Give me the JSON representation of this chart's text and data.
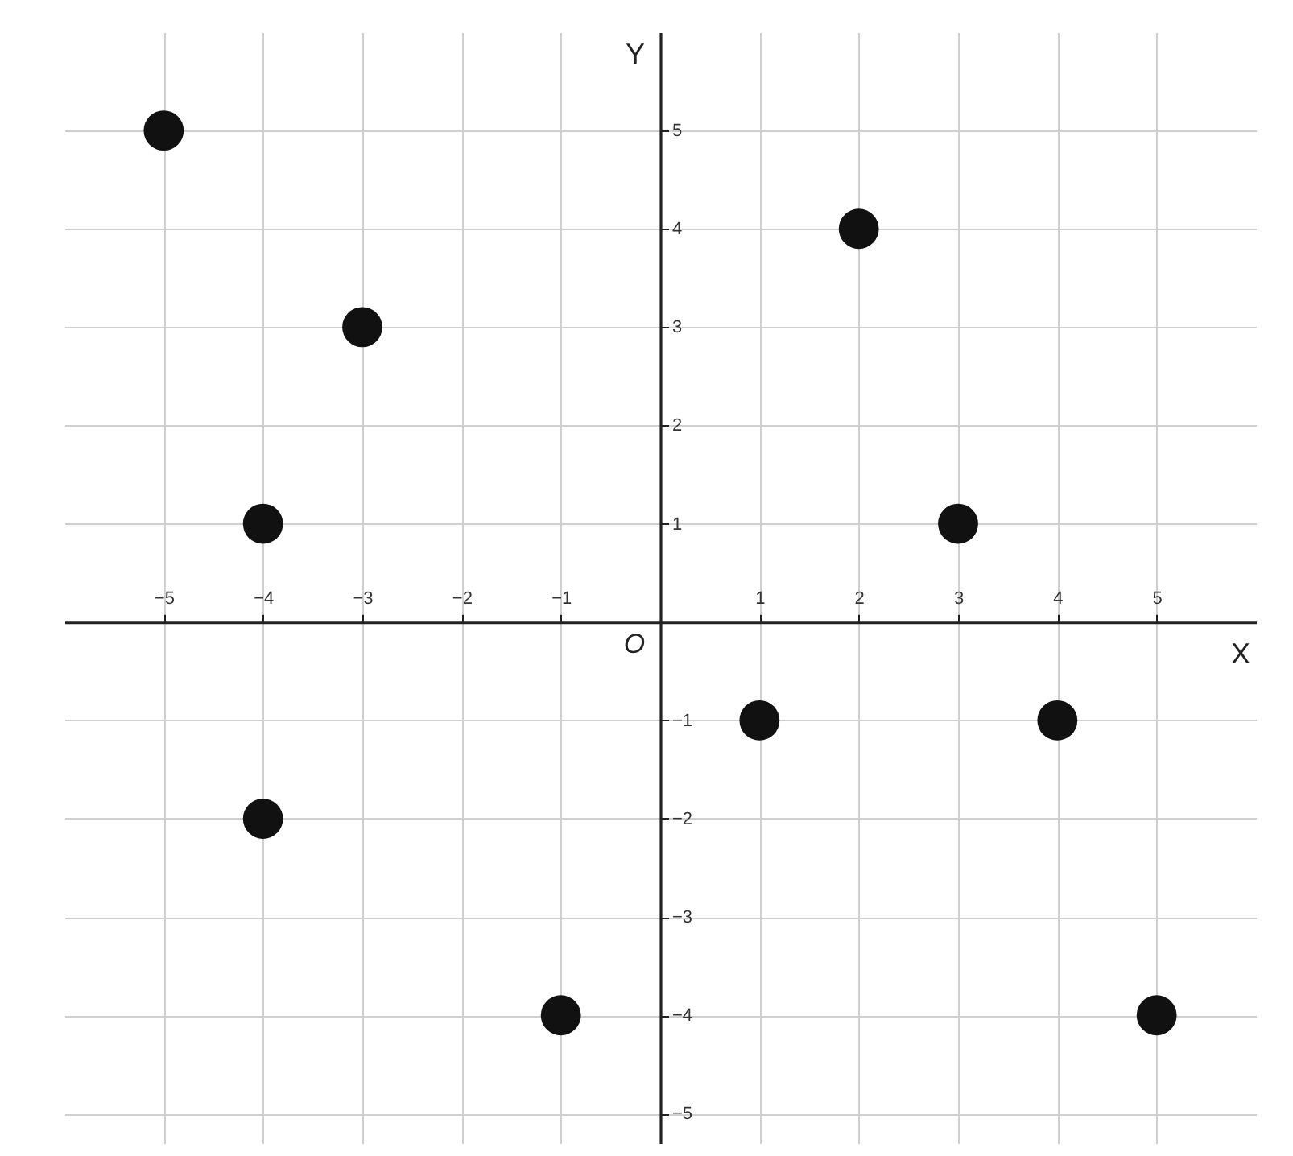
{
  "chart_data": {
    "type": "scatter",
    "xlabel": "X",
    "ylabel": "Y",
    "annotations": [
      "O"
    ],
    "x": [
      -5,
      -3,
      -4,
      -4,
      -1,
      1,
      2,
      3,
      4,
      5
    ],
    "series": [
      {
        "color": "#111111",
        "values": [
          5,
          3,
          1,
          -2,
          -4,
          -1,
          4,
          1,
          -1,
          -4
        ]
      }
    ],
    "xlim": [
      -6,
      6
    ],
    "ylim": [
      -5.3,
      6
    ],
    "xticks": [
      -5,
      -4,
      -3,
      -2,
      -1,
      1,
      2,
      3,
      4,
      5
    ],
    "yticks": [
      -5,
      -4,
      -3,
      -2,
      -1,
      1,
      2,
      3,
      4,
      5
    ],
    "grid": true,
    "marker": "circle"
  }
}
